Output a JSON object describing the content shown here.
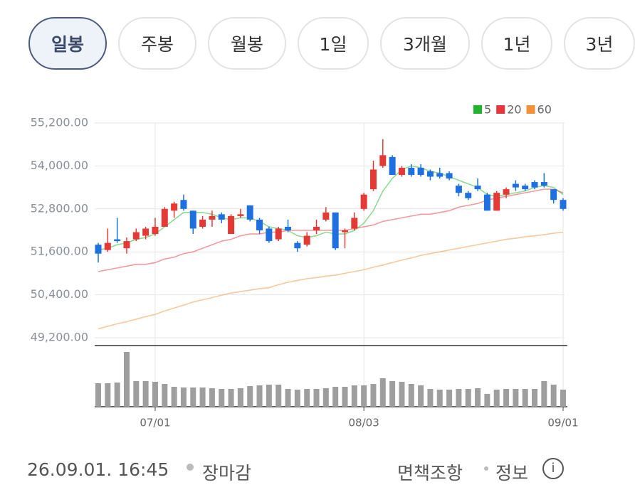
{
  "tabs": [
    "일봉",
    "주봉",
    "월봉",
    "1일",
    "3개월",
    "1년",
    "3년"
  ],
  "chart_data": {
    "type": "candlestick",
    "categories": [
      null,
      null,
      null,
      null,
      null,
      null,
      "07/01",
      null,
      null,
      null,
      null,
      null,
      null,
      null,
      null,
      null,
      null,
      null,
      null,
      null,
      null,
      null,
      null,
      null,
      null,
      null,
      null,
      null,
      "08/03",
      null,
      null,
      null,
      null,
      null,
      null,
      null,
      null,
      null,
      null,
      null,
      null,
      null,
      null,
      null,
      null,
      null,
      null,
      null,
      null,
      "09/01"
    ],
    "open": [
      51800,
      51650,
      51950,
      51700,
      51950,
      52050,
      52100,
      52300,
      52750,
      53050,
      52750,
      52300,
      52500,
      52650,
      52100,
      52600,
      52900,
      52500,
      52250,
      51950,
      52300,
      51850,
      51800,
      52200,
      52500,
      52700,
      52150,
      52250,
      52800,
      53350,
      54000,
      54250,
      53750,
      53950,
      53950,
      53850,
      53800,
      53800,
      53450,
      53250,
      53450,
      53200,
      52750,
      53200,
      53500,
      53450,
      53550,
      53550,
      53350,
      53050
    ],
    "high": [
      51850,
      52250,
      52550,
      52000,
      52250,
      52300,
      52550,
      52850,
      53000,
      53200,
      52750,
      52600,
      52750,
      52700,
      52650,
      52800,
      52900,
      52550,
      52300,
      52300,
      52500,
      51900,
      52150,
      52500,
      52850,
      52700,
      52250,
      52700,
      53250,
      54150,
      54750,
      54300,
      54000,
      54050,
      54050,
      53900,
      53950,
      53850,
      53500,
      53300,
      53650,
      53250,
      53300,
      53400,
      53600,
      53500,
      53600,
      53800,
      53350,
      53100
    ],
    "low": [
      51300,
      51600,
      51850,
      51550,
      51900,
      51950,
      52050,
      52300,
      52550,
      52750,
      52100,
      52250,
      52300,
      52400,
      52100,
      52550,
      52450,
      52100,
      51850,
      51900,
      52150,
      51600,
      51750,
      52100,
      52450,
      51650,
      51700,
      52200,
      52750,
      53300,
      53950,
      53750,
      53700,
      53700,
      53700,
      53600,
      53650,
      53600,
      53150,
      53050,
      53300,
      52750,
      52750,
      53100,
      53300,
      53300,
      53350,
      53400,
      52950,
      52750
    ],
    "close": [
      51550,
      51850,
      51900,
      51900,
      52150,
      52250,
      52300,
      52800,
      52950,
      52800,
      52250,
      52500,
      52600,
      52500,
      52600,
      52650,
      52500,
      52200,
      51900,
      52250,
      52200,
      51700,
      52050,
      52300,
      52700,
      51700,
      52200,
      52550,
      53200,
      53900,
      54300,
      53750,
      53950,
      53750,
      53750,
      53700,
      53700,
      53650,
      53250,
      53100,
      53350,
      52750,
      53250,
      53350,
      53400,
      53350,
      53400,
      53450,
      53050,
      52800
    ],
    "volume": [
      33,
      33,
      34,
      77,
      36,
      36,
      35,
      32,
      28,
      27,
      27,
      27,
      26,
      25,
      25,
      26,
      29,
      30,
      31,
      31,
      25,
      24,
      25,
      25,
      26,
      28,
      28,
      30,
      30,
      32,
      40,
      36,
      35,
      32,
      30,
      25,
      24,
      24,
      25,
      25,
      26,
      18,
      24,
      25,
      25,
      25,
      25,
      36,
      31,
      24
    ],
    "up_color": "#e53935",
    "down_color": "#1e6fe0",
    "series": [
      {
        "name": "5",
        "color": "#20b52c",
        "values": [
          51650,
          51700,
          51800,
          51850,
          51950,
          52000,
          52100,
          52300,
          52500,
          52700,
          52700,
          52700,
          52650,
          52550,
          52500,
          52550,
          52550,
          52450,
          52300,
          52250,
          52200,
          52050,
          52000,
          52050,
          52150,
          52100,
          52100,
          52200,
          52400,
          52750,
          53300,
          53650,
          53900,
          54000,
          53950,
          53850,
          53800,
          53700,
          53600,
          53500,
          53400,
          53200,
          53150,
          53200,
          53250,
          53300,
          53400,
          53450,
          53400,
          53200
        ]
      },
      {
        "name": "20",
        "color": "#e8363f",
        "values": [
          51050,
          51100,
          51150,
          51200,
          51250,
          51250,
          51300,
          51400,
          51450,
          51550,
          51600,
          51700,
          51800,
          51900,
          51950,
          52050,
          52100,
          52100,
          52150,
          52150,
          52200,
          52200,
          52200,
          52200,
          52200,
          52200,
          52200,
          52250,
          52300,
          52350,
          52450,
          52500,
          52550,
          52600,
          52650,
          52650,
          52700,
          52750,
          52850,
          52900,
          52950,
          53050,
          53100,
          53150,
          53200,
          53250,
          53300,
          53350,
          53350,
          53250
        ]
      },
      {
        "name": "60",
        "color": "#f2913a",
        "values": [
          49450,
          49520,
          49590,
          49650,
          49720,
          49790,
          49850,
          49950,
          50030,
          50110,
          50200,
          50260,
          50320,
          50390,
          50450,
          50490,
          50530,
          50570,
          50600,
          50680,
          50750,
          50800,
          50850,
          50880,
          50920,
          50950,
          51000,
          51050,
          51100,
          51170,
          51230,
          51300,
          51370,
          51430,
          51500,
          51550,
          51600,
          51650,
          51700,
          51750,
          51800,
          51850,
          51900,
          51950,
          51980,
          52020,
          52050,
          52080,
          52120,
          52150
        ]
      }
    ],
    "ylim": [
      49200,
      55200
    ],
    "yticks": [
      {
        "value": 55200,
        "label": "55,200.00"
      },
      {
        "value": 54000,
        "label": "54,000.00"
      },
      {
        "value": 52800,
        "label": "52,800.00"
      },
      {
        "value": 51600,
        "label": "51,600.00"
      },
      {
        "value": 50400,
        "label": "50,400.00"
      },
      {
        "value": 49200,
        "label": "49,200.00"
      }
    ],
    "grid": true,
    "legend": "top-right"
  },
  "footer": {
    "timestamp": "26.09.01. 16:45",
    "status": "장마감",
    "disclaimer": "면책조항",
    "info": "정보"
  }
}
